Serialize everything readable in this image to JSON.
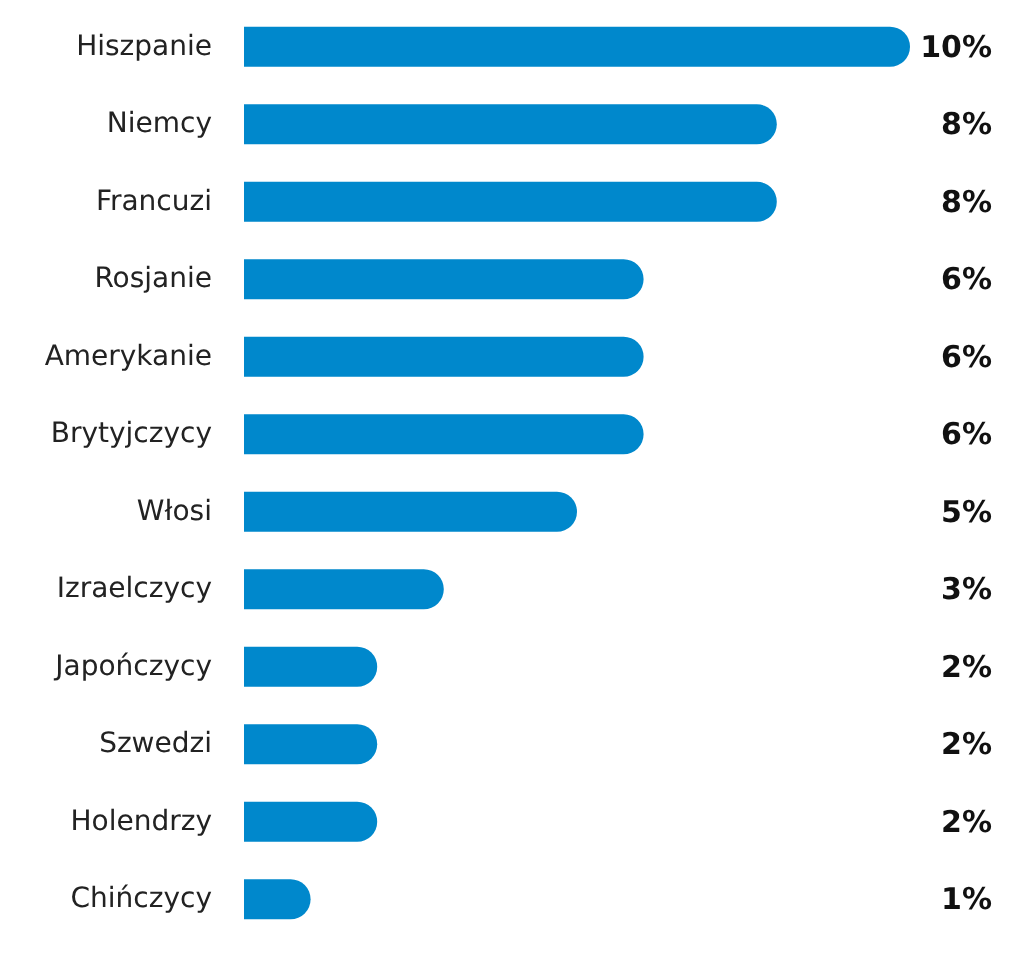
{
  "chart_data": {
    "type": "bar",
    "orientation": "horizontal",
    "categories": [
      "Hiszpanie",
      "Niemcy",
      "Francuzi",
      "Rosjanie",
      "Amerykanie",
      "Brytyjczycy",
      "Włosi",
      "Izraelczycy",
      "Japończycy",
      "Szwedzi",
      "Holendrzy",
      "Chińczycy"
    ],
    "values": [
      10,
      8,
      8,
      6,
      6,
      6,
      5,
      3,
      2,
      2,
      2,
      1
    ],
    "value_labels": [
      "10%",
      "8%",
      "8%",
      "6%",
      "6%",
      "6%",
      "5%",
      "3%",
      "2%",
      "2%",
      "2%",
      "1%"
    ],
    "color": "#0088cc"
  }
}
